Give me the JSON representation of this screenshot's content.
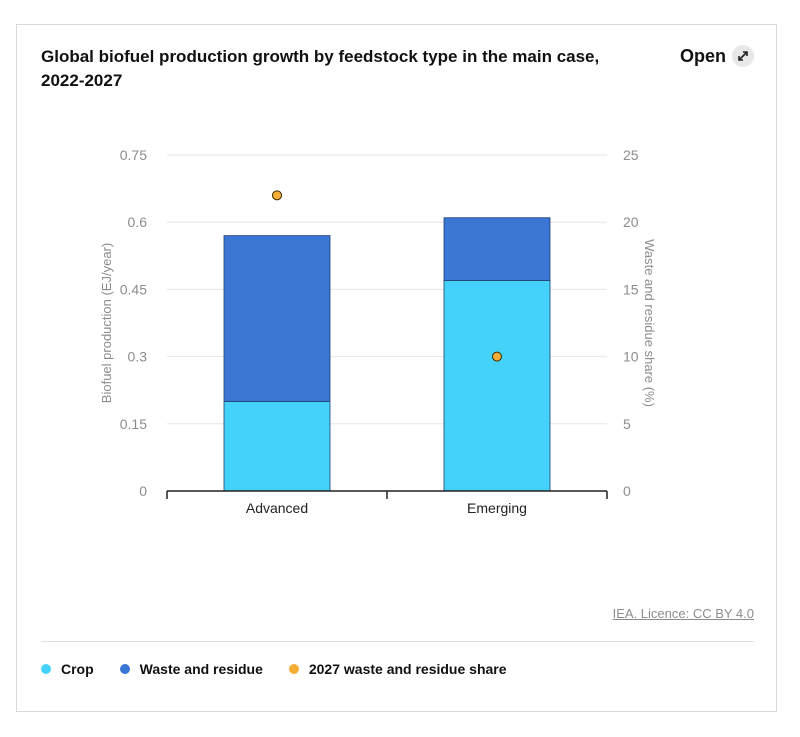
{
  "header": {
    "title": "Global biofuel production growth by feedstock type in the main case, 2022-2027",
    "open_label": "Open"
  },
  "source": "IEA. Licence: CC BY 4.0",
  "colors": {
    "crop": "#45d2fa",
    "waste": "#3b76d4",
    "share": "#f5ad35",
    "grid": "#e6e6e6",
    "axis": "#222222"
  },
  "legend": [
    {
      "label": "Crop",
      "color": "#45d2fa"
    },
    {
      "label": "Waste and residue",
      "color": "#3b76d4"
    },
    {
      "label": "2027 waste and residue share",
      "color": "#f5ad35"
    }
  ],
  "chart_data": {
    "type": "bar",
    "stacked": true,
    "categories": [
      "Advanced",
      "Emerging"
    ],
    "series": [
      {
        "name": "Crop",
        "axis": "left",
        "values": [
          0.2,
          0.47
        ]
      },
      {
        "name": "Waste and residue",
        "axis": "left",
        "values": [
          0.37,
          0.14
        ]
      },
      {
        "name": "2027 waste and residue share",
        "axis": "right",
        "kind": "scatter",
        "values": [
          22,
          10
        ]
      }
    ],
    "ylabel": "Biofuel production (EJ/year)",
    "y2label": "Waste and residue share (%)",
    "ylim": [
      0,
      0.75
    ],
    "y2lim": [
      0,
      25
    ],
    "yticks": [
      "0",
      "0.15",
      "0.3",
      "0.45",
      "0.6",
      "0.75"
    ],
    "y2ticks": [
      "0",
      "5",
      "10",
      "15",
      "20",
      "25"
    ],
    "grid": true,
    "legend_position": "bottom"
  }
}
